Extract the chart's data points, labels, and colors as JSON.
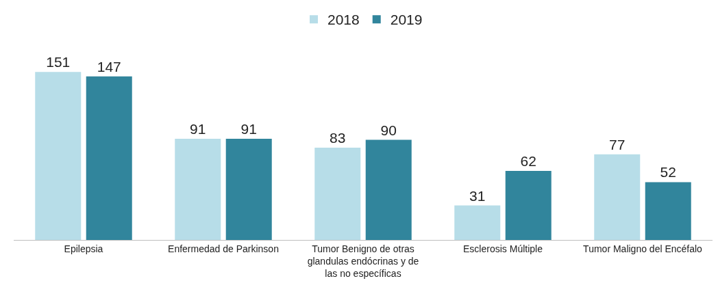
{
  "chart_data": {
    "type": "bar",
    "categories": [
      "Epilepsia",
      "Enfermedad de Parkinson",
      "Tumor Benigno de otras glandulas endócrinas y de las no específicas",
      "Esclerosis Múltiple",
      "Tumor Maligno del Encéfalo"
    ],
    "series": [
      {
        "name": "2018",
        "color": "#b7dde8",
        "values": [
          151,
          91,
          83,
          31,
          77
        ]
      },
      {
        "name": "2019",
        "color": "#31859c",
        "values": [
          147,
          91,
          90,
          62,
          52
        ]
      }
    ],
    "data_labels": true,
    "legend": "top",
    "grid": false
  }
}
